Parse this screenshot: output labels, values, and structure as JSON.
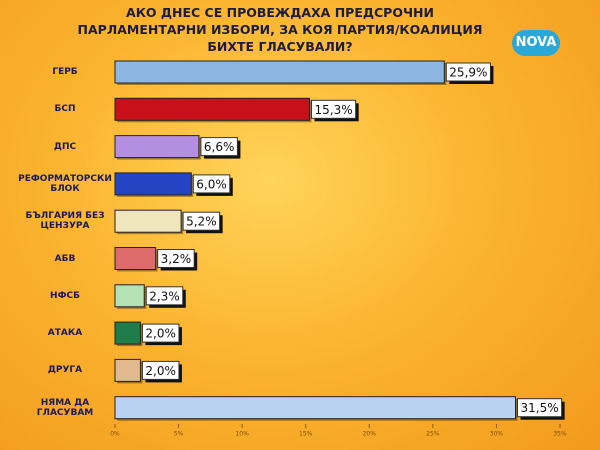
{
  "logo": "NOVA",
  "chart_data": {
    "type": "hbar",
    "title": "АКО ДНЕС СЕ ПРОВЕЖДАХА ПРЕДСРОЧНИ ПАРЛАМЕНТАРНИ ИЗБОРИ, ЗА КОЯ ПАРТИЯ/КОАЛИЦИЯ БИХТЕ ГЛАСУВАЛИ?",
    "categories": [
      "ГЕРБ",
      "БСП",
      "ДПС",
      "РЕФОРМАТОРСКИ БЛОК",
      "БЪЛГАРИЯ БЕЗ ЦЕНЗУРА",
      "АБВ",
      "НФСБ",
      "АТАКА",
      "ДРУГА",
      "НЯМА ДА ГЛАСУВАМ"
    ],
    "values": [
      25.9,
      15.3,
      6.6,
      6.0,
      5.2,
      3.2,
      2.3,
      2.0,
      2.0,
      31.5
    ],
    "value_labels": [
      "25,9%",
      "15,3%",
      "6,6%",
      "6,0%",
      "5,2%",
      "3,2%",
      "2,3%",
      "2,0%",
      "2,0%",
      "31,5%"
    ],
    "colors": [
      "#8db6e2",
      "#c8101a",
      "#b48ee0",
      "#2444c4",
      "#efe6bc",
      "#de6b6b",
      "#b4e2b4",
      "#1f7d4c",
      "#e2b98e",
      "#b9d2f2"
    ],
    "xlim": [
      0,
      35
    ],
    "xticks": [
      {
        "value": 0,
        "label": "0%"
      },
      {
        "value": 5,
        "label": "5%"
      },
      {
        "value": 10,
        "label": "10%"
      },
      {
        "value": 15,
        "label": "15%"
      },
      {
        "value": 20,
        "label": "20%"
      },
      {
        "value": 25,
        "label": "25%"
      },
      {
        "value": 30,
        "label": "30%"
      },
      {
        "value": 35,
        "label": "35%"
      }
    ]
  }
}
